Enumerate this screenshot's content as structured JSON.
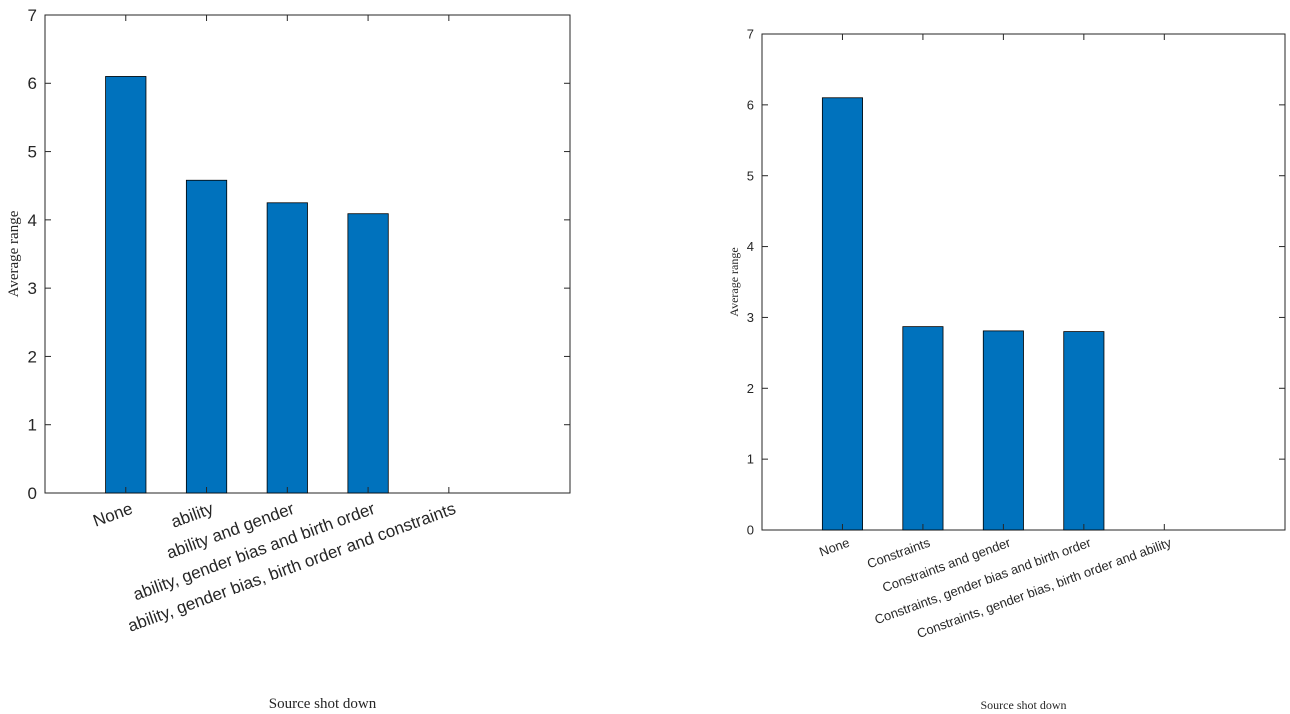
{
  "chart_data": [
    {
      "type": "bar",
      "categories": [
        "None",
        "ability",
        "ability and gender",
        "ability, gender bias and birth order",
        "ability, gender bias, birth order and constraints"
      ],
      "values": [
        6.1,
        4.58,
        4.25,
        4.09,
        0
      ],
      "xlabel": "Source shot down",
      "ylabel": "Average range",
      "ylim": [
        0,
        7
      ],
      "yticks": [
        "0",
        "1",
        "2",
        "3",
        "4",
        "5",
        "6",
        "7"
      ],
      "bar_color": "#0072BD",
      "grid": false
    },
    {
      "type": "bar",
      "categories": [
        "None",
        "Constraints",
        "Constraints and gender",
        "Constraints, gender bias and birth order",
        "Constraints, gender bias, birth order and ability"
      ],
      "values": [
        6.1,
        2.87,
        2.81,
        2.8,
        0
      ],
      "xlabel": "Source shot down",
      "ylabel": "Average range",
      "ylim": [
        0,
        7
      ],
      "yticks": [
        "0",
        "1",
        "2",
        "3",
        "4",
        "5",
        "6",
        "7"
      ],
      "bar_color": "#0072BD",
      "grid": false
    }
  ]
}
